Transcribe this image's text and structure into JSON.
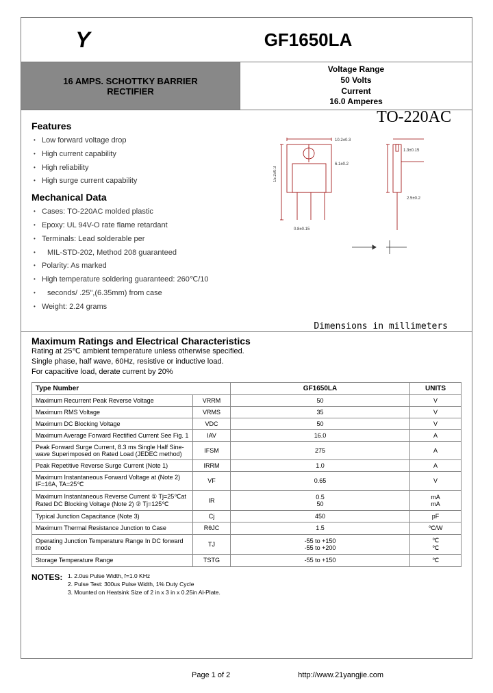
{
  "header": {
    "logo": "Y",
    "part_number": "GF1650LA",
    "product_title_line1": "16 AMPS. SCHOTTKY BARRIER",
    "product_title_line2": "RECTIFIER",
    "voltage_range_label": "Voltage Range",
    "voltage_range_value": "50 Volts",
    "current_label": "Current",
    "current_value": "16.0 Amperes",
    "package": "TO-220AC"
  },
  "features": {
    "title": "Features",
    "items": [
      "Low forward voltage drop",
      "High current capability",
      "High reliability",
      "High surge current capability"
    ]
  },
  "mechanical": {
    "title": "Mechanical Data",
    "items": [
      "Cases: TO-220AC molded plastic",
      "Epoxy: UL 94V-O rate flame retardant",
      "Terminals: Lead solderable per",
      "MIL-STD-202, Method 208 guaranteed",
      "Polarity: As marked",
      "High temperature soldering guaranteed: 260℃/10",
      "seconds/ .25\",(6.35mm) from case",
      "Weight: 2.24 grams"
    ]
  },
  "diagram": {
    "dim_label": "Dimensions in millimeters",
    "colors": {
      "line": "#990000",
      "text": "#333"
    }
  },
  "ratings": {
    "title": "Maximum Ratings and Electrical Characteristics",
    "subtitle_1": "Rating at 25℃ ambient temperature unless otherwise specified.",
    "subtitle_2": "Single phase, half wave, 60Hz, resistive or inductive load.",
    "subtitle_3": "For capacitive load, derate current by 20%"
  },
  "spec_table": {
    "headers": {
      "type": "Type Number",
      "part": "GF1650LA",
      "units": "UNITS"
    },
    "rows": [
      {
        "param": "Maximum Recurrent Peak Reverse Voltage",
        "symbol": "VRRM",
        "value": "50",
        "unit": "V"
      },
      {
        "param": "Maximum RMS Voltage",
        "symbol": "VRMS",
        "value": "35",
        "unit": "V"
      },
      {
        "param": "Maximum DC Blocking Voltage",
        "symbol": "VDC",
        "value": "50",
        "unit": "V"
      },
      {
        "param": "Maximum Average Forward Rectified Current See Fig. 1",
        "symbol": "IAV",
        "value": "16.0",
        "unit": "A"
      },
      {
        "param": "Peak Forward Surge Current, 8.3 ms Single Half Sine-wave Superimposed on Rated Load (JEDEC method)",
        "symbol": "IFSM",
        "value": "275",
        "unit": "A"
      },
      {
        "param": "Peak Repetitive Reverse Surge Current (Note 1)",
        "symbol": "IRRM",
        "value": "1.0",
        "unit": "A"
      },
      {
        "param": "Maximum Instantaneous Forward Voltage at (Note 2) IF=16A, TA=25℃",
        "symbol": "VF",
        "value": "0.65",
        "unit": "V"
      },
      {
        "param": "Maximum Instantaneous Reverse Current ① Tj=25℃at Rated DC Blocking Voltage (Note 2) ② Tj=125℃",
        "symbol": "IR",
        "value": "0.5\n50",
        "unit": "mA\nmA"
      },
      {
        "param": "Typical Junction Capacitance (Note 3)",
        "symbol": "Cj",
        "value": "450",
        "unit": "pF"
      },
      {
        "param": "Maximum Thermal Resistance Junction to Case",
        "symbol": "RθJC",
        "value": "1.5",
        "unit": "℃/W"
      },
      {
        "param": "Operating Junction Temperature Range In DC forward mode",
        "symbol": "TJ",
        "value": "-55 to +150\n-55 to +200",
        "unit": "℃\n℃"
      },
      {
        "param": "Storage Temperature Range",
        "symbol": "TSTG",
        "value": "-55 to +150",
        "unit": "℃"
      }
    ]
  },
  "notes": {
    "title": "NOTES:",
    "items": [
      "1. 2.0us Pulse Width, f=1.0 KHz",
      "2. Pulse Test: 300us Pulse Width, 1% Duty Cycle",
      "3. Mounted on Heatsink Size of 2 in x 3 in x 0.25in Al-Plate."
    ]
  },
  "footer": {
    "page": "Page 1 of 2",
    "url": "http://www.21yangjie.com"
  }
}
